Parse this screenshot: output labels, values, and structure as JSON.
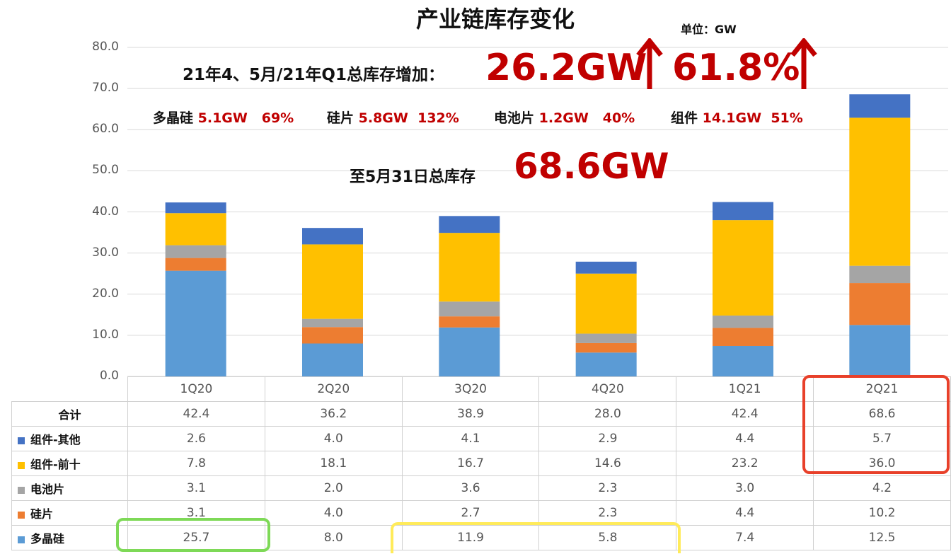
{
  "title": "产业链库存变化",
  "unit": "单位：GW",
  "annotation": {
    "line1_label": "21年4、5月/21年Q1总库存增加：",
    "line1_value": "26.2GW",
    "line1_pct": "61.8%",
    "items": [
      {
        "name": "多晶硅",
        "value": "5.1GW",
        "pct": "69%"
      },
      {
        "name": "硅片",
        "value": "5.8GW",
        "pct": "132%"
      },
      {
        "name": "电池片",
        "value": "1.2GW",
        "pct": "40%"
      },
      {
        "name": "组件",
        "value": "14.1GW",
        "pct": "51%"
      }
    ],
    "line3_label": "至5月31日总库存",
    "line3_value": "68.6GW"
  },
  "colors": {
    "组件-其他": "#4472c4",
    "组件-前十": "#ffc000",
    "电池片": "#a5a5a5",
    "硅片": "#ed7d31",
    "多晶硅": "#5b9bd5",
    "accent": "#c00000",
    "highlight_red": "#e8402a",
    "highlight_green": "#7ed957",
    "highlight_yellow": "#ffeb5a"
  },
  "chart_data": {
    "type": "bar",
    "stacked": true,
    "title": "产业链库存变化",
    "categories": [
      "1Q20",
      "2Q20",
      "3Q20",
      "4Q20",
      "1Q21",
      "2Q21"
    ],
    "ylim": [
      0,
      80
    ],
    "yticks": [
      "0.0",
      "10.0",
      "20.0",
      "30.0",
      "40.0",
      "50.0",
      "60.0",
      "70.0",
      "80.0"
    ],
    "grid": true,
    "legend": "data-table",
    "total_label": "合计",
    "totals": [
      42.4,
      36.2,
      38.9,
      28.0,
      42.4,
      68.6
    ],
    "series": [
      {
        "name": "多晶硅",
        "values": [
          25.7,
          8.0,
          11.9,
          5.8,
          7.4,
          12.5
        ]
      },
      {
        "name": "硅片",
        "values": [
          3.1,
          4.0,
          2.7,
          2.3,
          4.4,
          10.2
        ]
      },
      {
        "name": "电池片",
        "values": [
          3.1,
          2.0,
          3.6,
          2.3,
          3.0,
          4.2
        ]
      },
      {
        "name": "组件-前十",
        "values": [
          7.8,
          18.1,
          16.7,
          14.6,
          23.2,
          36.0
        ]
      },
      {
        "name": "组件-其他",
        "values": [
          2.6,
          4.0,
          4.1,
          2.9,
          4.4,
          5.7
        ]
      }
    ],
    "table_order": [
      "组件-其他",
      "组件-前十",
      "电池片",
      "硅片",
      "多晶硅"
    ]
  }
}
